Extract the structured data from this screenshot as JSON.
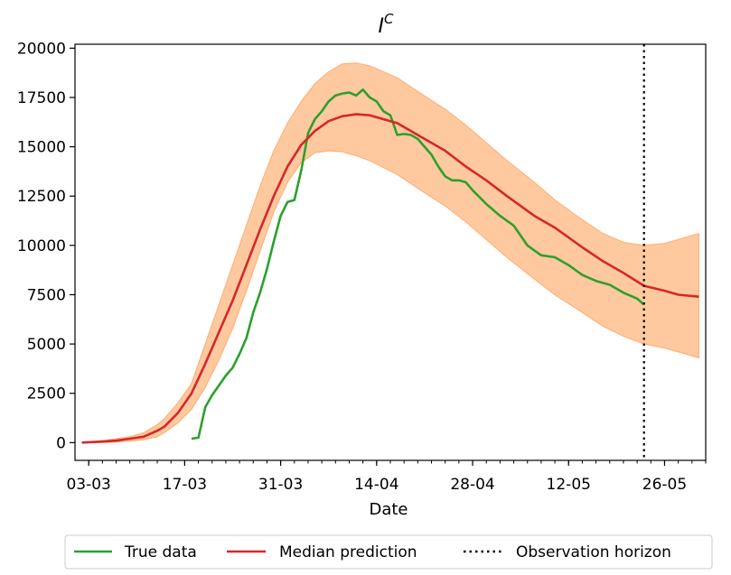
{
  "chart_data": {
    "type": "line",
    "title": "I",
    "title_superscript": "C",
    "xlabel": "Date",
    "ylabel": "",
    "x_start_date": "2020-03-01",
    "x_tick_labels": [
      "03-03",
      "17-03",
      "31-03",
      "14-04",
      "28-04",
      "12-05",
      "26-05"
    ],
    "x_tick_dates": [
      "2020-03-03",
      "2020-03-17",
      "2020-03-31",
      "2020-04-14",
      "2020-04-28",
      "2020-05-12",
      "2020-05-26"
    ],
    "xlim": [
      "2020-03-01",
      "2020-06-01"
    ],
    "ylim": [
      -900,
      20200
    ],
    "y_ticks": [
      0,
      2500,
      5000,
      7500,
      10000,
      12500,
      15000,
      17500,
      20000
    ],
    "y_tick_labels": [
      "0",
      "2500",
      "5000",
      "7500",
      "10000",
      "12500",
      "15000",
      "17500",
      "20000"
    ],
    "grid": false,
    "legend_position": "bottom-center",
    "colors": {
      "true_data": "#2ca02c",
      "median": "#d62728",
      "band_fill": "#ffc9a0",
      "band_edge": "#ffb27a",
      "horizon": "#000000"
    },
    "legend": [
      {
        "label": "True data",
        "style": "solid",
        "color": "#2ca02c"
      },
      {
        "label": "Median prediction",
        "style": "solid",
        "color": "#d62728"
      },
      {
        "label": "Observation horizon",
        "style": "dotted",
        "color": "#000000"
      }
    ],
    "observation_horizon_date": "2020-05-23",
    "series": [
      {
        "name": "Median prediction",
        "dates": [
          "2020-03-02",
          "2020-03-05",
          "2020-03-07",
          "2020-03-09",
          "2020-03-11",
          "2020-03-13",
          "2020-03-14",
          "2020-03-16",
          "2020-03-18",
          "2020-03-20",
          "2020-03-22",
          "2020-03-24",
          "2020-03-26",
          "2020-03-28",
          "2020-03-30",
          "2020-04-01",
          "2020-04-03",
          "2020-04-05",
          "2020-04-07",
          "2020-04-09",
          "2020-04-11",
          "2020-04-13",
          "2020-04-17",
          "2020-04-20",
          "2020-04-24",
          "2020-04-27",
          "2020-04-30",
          "2020-05-03",
          "2020-05-07",
          "2020-05-10",
          "2020-05-14",
          "2020-05-17",
          "2020-05-20",
          "2020-05-23",
          "2020-05-26",
          "2020-05-28",
          "2020-05-31"
        ],
        "values": [
          0,
          50,
          100,
          200,
          300,
          600,
          800,
          1500,
          2500,
          4000,
          5600,
          7200,
          9000,
          10800,
          12500,
          14000,
          15100,
          15800,
          16300,
          16550,
          16650,
          16600,
          16200,
          15600,
          14800,
          14000,
          13300,
          12500,
          11500,
          10900,
          9900,
          9200,
          8600,
          7950,
          7700,
          7500,
          7400
        ]
      },
      {
        "name": "True data",
        "dates": [
          "2020-03-18",
          "2020-03-19",
          "2020-03-20",
          "2020-03-21",
          "2020-03-22",
          "2020-03-23",
          "2020-03-24",
          "2020-03-25",
          "2020-03-26",
          "2020-03-27",
          "2020-03-28",
          "2020-03-29",
          "2020-03-30",
          "2020-03-31",
          "2020-04-01",
          "2020-04-02",
          "2020-04-03",
          "2020-04-04",
          "2020-04-05",
          "2020-04-06",
          "2020-04-07",
          "2020-04-08",
          "2020-04-09",
          "2020-04-10",
          "2020-04-11",
          "2020-04-12",
          "2020-04-13",
          "2020-04-14",
          "2020-04-15",
          "2020-04-16",
          "2020-04-17",
          "2020-04-18",
          "2020-04-19",
          "2020-04-20",
          "2020-04-21",
          "2020-04-22",
          "2020-04-23",
          "2020-04-24",
          "2020-04-25",
          "2020-04-26",
          "2020-04-27",
          "2020-04-28",
          "2020-04-30",
          "2020-05-02",
          "2020-05-04",
          "2020-05-06",
          "2020-05-08",
          "2020-05-10",
          "2020-05-12",
          "2020-05-14",
          "2020-05-16",
          "2020-05-18",
          "2020-05-20",
          "2020-05-22",
          "2020-05-23"
        ],
        "values": [
          200,
          250,
          1800,
          2400,
          2900,
          3400,
          3800,
          4500,
          5300,
          6600,
          7600,
          8800,
          10200,
          11500,
          12200,
          12300,
          13800,
          15700,
          16400,
          16800,
          17300,
          17600,
          17700,
          17750,
          17600,
          17900,
          17500,
          17300,
          16800,
          16600,
          15600,
          15650,
          15600,
          15400,
          15000,
          14600,
          14000,
          13500,
          13300,
          13300,
          13200,
          12800,
          12100,
          11500,
          11000,
          10000,
          9500,
          9400,
          9000,
          8500,
          8200,
          8000,
          7600,
          7300,
          7000
        ]
      }
    ],
    "band": {
      "name": "Prediction interval",
      "dates": [
        "2020-03-02",
        "2020-03-05",
        "2020-03-07",
        "2020-03-09",
        "2020-03-11",
        "2020-03-13",
        "2020-03-14",
        "2020-03-16",
        "2020-03-18",
        "2020-03-20",
        "2020-03-22",
        "2020-03-24",
        "2020-03-26",
        "2020-03-28",
        "2020-03-30",
        "2020-04-01",
        "2020-04-03",
        "2020-04-05",
        "2020-04-07",
        "2020-04-09",
        "2020-04-11",
        "2020-04-13",
        "2020-04-17",
        "2020-04-20",
        "2020-04-24",
        "2020-04-27",
        "2020-04-30",
        "2020-05-03",
        "2020-05-07",
        "2020-05-10",
        "2020-05-14",
        "2020-05-17",
        "2020-05-20",
        "2020-05-23",
        "2020-05-26",
        "2020-05-28",
        "2020-05-31"
      ],
      "upper": [
        0,
        100,
        200,
        300,
        500,
        900,
        1200,
        2000,
        3000,
        5000,
        7000,
        9000,
        11000,
        13000,
        14800,
        16200,
        17300,
        18200,
        18800,
        19200,
        19250,
        19100,
        18500,
        17800,
        16900,
        16100,
        15200,
        14300,
        13200,
        12300,
        11300,
        10600,
        10150,
        10000,
        10100,
        10300,
        10600
      ],
      "lower": [
        0,
        10,
        30,
        80,
        150,
        300,
        500,
        1000,
        1700,
        2800,
        4200,
        5800,
        7700,
        9700,
        11700,
        13200,
        14200,
        14700,
        14800,
        14750,
        14550,
        14300,
        13600,
        12900,
        12000,
        11200,
        10300,
        9400,
        8300,
        7500,
        6600,
        5900,
        5400,
        5000,
        4800,
        4600,
        4300
      ]
    }
  }
}
